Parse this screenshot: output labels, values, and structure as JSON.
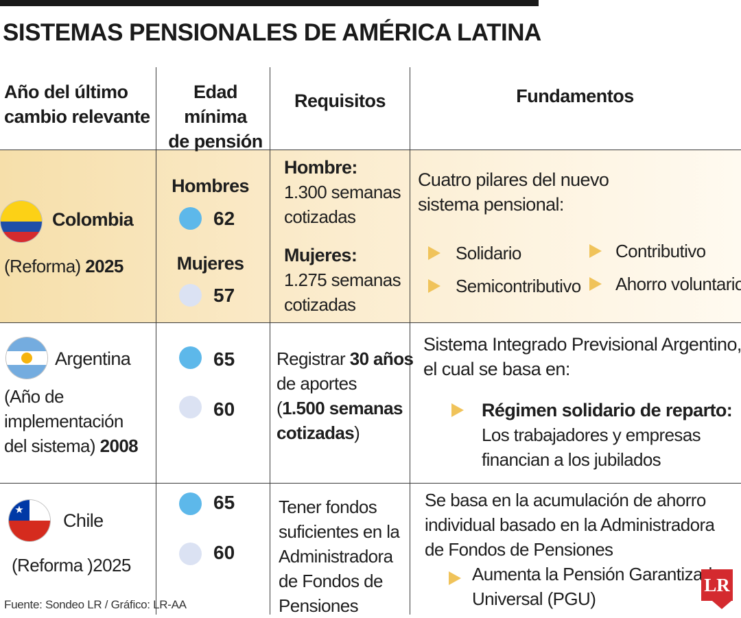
{
  "title": "SISTEMAS PENSIONALES DE AMÉRICA LATINA",
  "headers": {
    "year_line1": "Año del último",
    "year_line2": "cambio relevante",
    "age_line1": "Edad mínima",
    "age_line2": "de pensión",
    "requirements": "Requisitos",
    "foundations": "Fundamentos"
  },
  "colors": {
    "accent": "#f0c35a",
    "men_dot": "#5db8ea",
    "women_dot": "#dbe2f3",
    "highlight": "#f6dfaa",
    "brand": "#d42a2f"
  },
  "colombia": {
    "country": "Colombia",
    "year_label": "(Reforma)",
    "year": "2025",
    "men_label": "Hombres",
    "men_age": "62",
    "women_label": "Mujeres",
    "women_age": "57",
    "req_men_label": "Hombre:",
    "req_men_line1": "1.300 semanas",
    "req_men_line2": "cotizadas",
    "req_women_label": "Mujeres:",
    "req_women_line1": "1.275 semanas",
    "req_women_line2": "cotizadas",
    "found_line1": "Cuatro pilares del nuevo",
    "found_line2": "sistema pensional:",
    "pillars": [
      "Solidario",
      "Contributivo",
      "Semicontributivo",
      "Ahorro voluntario"
    ]
  },
  "argentina": {
    "country": "Argentina",
    "year_line1": "(Año de",
    "year_line2": "implementación",
    "year_line3": "del sistema)",
    "year": "2008",
    "men_age": "65",
    "women_age": "60",
    "req_pre": "Registrar",
    "req_bold1": "30 años",
    "req_line2": "de aportes",
    "req_open": "(",
    "req_bold2": "1.500 semanas",
    "req_bold3": "cotizadas",
    "req_close": ")",
    "found_line1": "Sistema Integrado Previsional Argentino,",
    "found_line2": "el cual se basa en:",
    "bullet_title": "Régimen solidario de reparto:",
    "bullet_line1": "Los trabajadores y empresas",
    "bullet_line2": "financian a los jubilados"
  },
  "chile": {
    "country": "Chile",
    "year_label": "(Reforma )",
    "year": "2025",
    "men_age": "65",
    "women_age": "60",
    "req_lines": [
      "Tener fondos",
      "suficientes en la",
      "Administradora",
      "de Fondos de",
      "Pensiones"
    ],
    "found_lines": [
      "Se basa en la acumulación de ahorro",
      "individual basado en la Administradora",
      "de Fondos de Pensiones"
    ],
    "bullet_line1": "Aumenta la Pensión Garantizada",
    "bullet_line2": "Universal (PGU)"
  },
  "footer": "Fuente: Sondeo LR  / Gráfico: LR-AA",
  "logo": "LR"
}
